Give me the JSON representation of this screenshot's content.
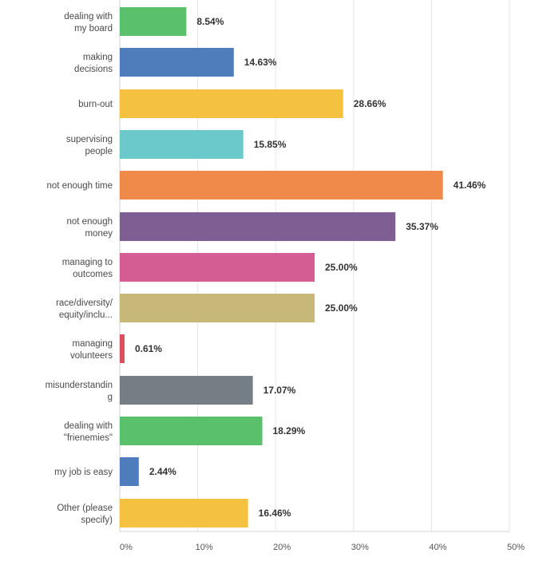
{
  "chart_data": {
    "type": "bar",
    "orientation": "horizontal",
    "categories": [
      [
        "dealing with",
        "my board"
      ],
      [
        "making",
        "decisions"
      ],
      [
        "burn-out"
      ],
      [
        "supervising",
        "people"
      ],
      [
        "not enough time"
      ],
      [
        "not enough",
        "money"
      ],
      [
        "managing to",
        "outcomes"
      ],
      [
        "race/diversity/",
        "equity/inclu..."
      ],
      [
        "managing",
        "volunteers"
      ],
      [
        "misunderstandin",
        "g"
      ],
      [
        "dealing with",
        "\"frienemies\""
      ],
      [
        "my job is easy"
      ],
      [
        "Other (please",
        "specify)"
      ]
    ],
    "values": [
      8.54,
      14.63,
      28.66,
      15.85,
      41.46,
      35.37,
      25.0,
      25.0,
      0.61,
      17.07,
      18.29,
      2.44,
      16.46
    ],
    "value_labels": [
      "8.54%",
      "14.63%",
      "28.66%",
      "15.85%",
      "41.46%",
      "35.37%",
      "25.00%",
      "25.00%",
      "0.61%",
      "17.07%",
      "18.29%",
      "2.44%",
      "16.46%"
    ],
    "colors": [
      "#5ac06c",
      "#4f7dbb",
      "#f5c141",
      "#6bc9cc",
      "#f08a4b",
      "#7e5e93",
      "#d45e93",
      "#c7b778",
      "#d94f5c",
      "#767e85",
      "#5ac06c",
      "#4f7dbb",
      "#f5c141"
    ],
    "xlim": [
      0,
      50
    ],
    "ticks": [
      0,
      10,
      20,
      30,
      40,
      50
    ],
    "tick_labels": [
      "0%",
      "10%",
      "20%",
      "30%",
      "40%",
      "50%"
    ],
    "grid": true,
    "title": "",
    "xlabel": "",
    "ylabel": ""
  }
}
